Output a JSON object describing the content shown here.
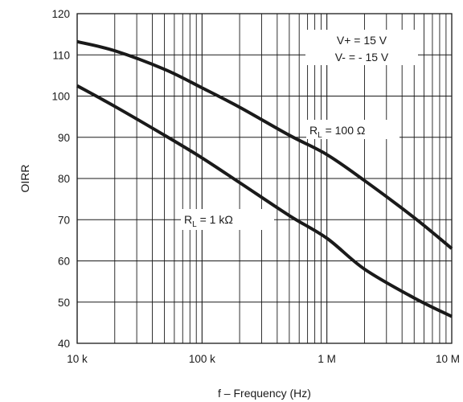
{
  "chart_data": {
    "type": "line",
    "title": "",
    "xlabel": "f – Frequency (Hz)",
    "ylabel": "OIRR",
    "x_scale": "log",
    "xlim": [
      10000,
      10000000
    ],
    "ylim": [
      40,
      120
    ],
    "grid": true,
    "x_ticks": [
      {
        "value": 10000,
        "label": "10 k"
      },
      {
        "value": 100000,
        "label": "100 k"
      },
      {
        "value": 1000000,
        "label": "1 M"
      },
      {
        "value": 10000000,
        "label": "10 M"
      }
    ],
    "y_ticks": [
      {
        "value": 40,
        "label": "40"
      },
      {
        "value": 50,
        "label": "50"
      },
      {
        "value": 60,
        "label": "60"
      },
      {
        "value": 70,
        "label": "70"
      },
      {
        "value": 80,
        "label": "80"
      },
      {
        "value": 90,
        "label": "90"
      },
      {
        "value": 100,
        "label": "100"
      },
      {
        "value": 110,
        "label": "110"
      },
      {
        "value": 120,
        "label": "120"
      }
    ],
    "series": [
      {
        "name": "R_L = 100 Ω",
        "label_main": "R",
        "label_sub": "L",
        "label_rest": " = 100 Ω",
        "color": "#1a1a1a",
        "x": [
          10000,
          20000,
          50000,
          100000,
          200000,
          500000,
          1000000,
          2000000,
          5000000,
          10000000
        ],
        "y": [
          113.2,
          111.0,
          106.5,
          102.0,
          97.3,
          90.5,
          85.8,
          79.5,
          70.5,
          63.0
        ]
      },
      {
        "name": "R_L = 1 kΩ",
        "label_main": "R",
        "label_sub": "L",
        "label_rest": " = 1 kΩ",
        "color": "#1a1a1a",
        "x": [
          10000,
          20000,
          50000,
          100000,
          200000,
          500000,
          1000000,
          2000000,
          5000000,
          10000000
        ],
        "y": [
          102.5,
          97.5,
          90.5,
          85.0,
          79.0,
          71.0,
          65.5,
          58.0,
          51.0,
          46.5
        ]
      }
    ],
    "annotations": [
      {
        "line1": "V+ = 15 V",
        "line2": "V- = - 15 V"
      }
    ]
  }
}
